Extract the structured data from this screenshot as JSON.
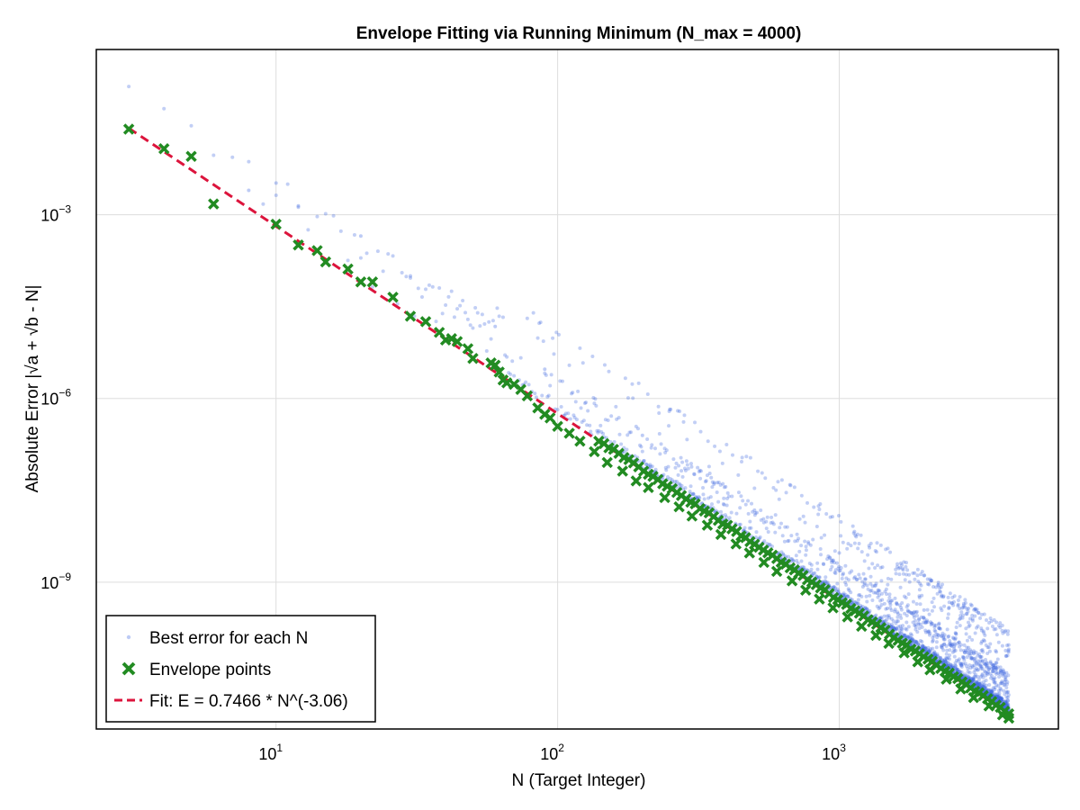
{
  "chart_data": {
    "type": "scatter",
    "title": "Envelope Fitting via Running Minimum (N_max = 4000)",
    "xlabel": "N (Target Integer)",
    "ylabel": "Absolute Error |√a + √b - N|",
    "x_scale": "log",
    "y_scale": "log",
    "xlim": [
      2.3,
      6000
    ],
    "ylim": [
      4e-12,
      0.5
    ],
    "grid": true,
    "legend_position": "bottom-left",
    "x_ticks": [
      {
        "base": "10",
        "exp": "1",
        "value": 10
      },
      {
        "base": "10",
        "exp": "2",
        "value": 100
      },
      {
        "base": "10",
        "exp": "3",
        "value": 1000
      }
    ],
    "y_ticks": [
      {
        "base": "10",
        "exp": "−3",
        "value": 0.001
      },
      {
        "base": "10",
        "exp": "−6",
        "value": 1e-06
      },
      {
        "base": "10",
        "exp": "−9",
        "value": 1e-09
      }
    ],
    "series": [
      {
        "name": "Best error for each N",
        "kind": "scatter",
        "color": "#4169E1",
        "x_range": [
          3,
          4000
        ],
        "description_lower_bound": "≈ Fit line",
        "sample_points": [
          [
            8,
            0.0025
          ],
          [
            10,
            0.0033
          ],
          [
            12,
            0.0014
          ],
          [
            20,
            0.00045
          ],
          [
            30,
            0.0001
          ],
          [
            60,
            1.5e-05
          ],
          [
            90,
            3e-06
          ],
          [
            200,
            2.5e-07
          ],
          [
            500,
            1.5e-08
          ],
          [
            1000,
            3e-09
          ],
          [
            2000,
            3.5e-10
          ],
          [
            4000,
            8e-11
          ]
        ]
      },
      {
        "name": "Envelope points",
        "kind": "scatter",
        "marker": "x",
        "color": "#228B22",
        "x": [
          3,
          4,
          5,
          6,
          10,
          12,
          14,
          15,
          18,
          20,
          22,
          26,
          30,
          34,
          38,
          40,
          42,
          44,
          48,
          50,
          58,
          60,
          62,
          64,
          66,
          70,
          74,
          78,
          85,
          90,
          94,
          100,
          110,
          120,
          135,
          150,
          170,
          190,
          210,
          240,
          270,
          300,
          340,
          380,
          430,
          480,
          540,
          600,
          680,
          760,
          850,
          950,
          1070,
          1200,
          1350,
          1500,
          1700,
          1900,
          2100,
          2400,
          2700,
          3000,
          3400,
          3800,
          4000
        ],
        "y": [
          0.025,
          0.012,
          0.009,
          0.0015,
          0.0007,
          0.00032,
          0.00026,
          0.00017,
          0.00013,
          8e-05,
          8e-05,
          4.5e-05,
          2.2e-05,
          1.8e-05,
          1.2e-05,
          9e-06,
          9.5e-06,
          8.5e-06,
          6.5e-06,
          4.5e-06,
          3.8e-06,
          3.5e-06,
          2.7e-06,
          2e-06,
          1.8e-06,
          1.7e-06,
          1.4e-06,
          1.1e-06,
          7e-07,
          5.5e-07,
          4.8e-07,
          3.5e-07,
          2.7e-07,
          2e-07,
          1.35e-07,
          9e-08,
          6.5e-08,
          4.5e-08,
          3.5e-08,
          2.4e-08,
          1.7e-08,
          1.2e-08,
          8.5e-09,
          6e-09,
          4.2e-09,
          3e-09,
          2.1e-09,
          1.5e-09,
          1.05e-09,
          7.4e-10,
          5.3e-10,
          3.8e-10,
          2.7e-10,
          1.9e-10,
          1.35e-10,
          1e-10,
          7e-11,
          5e-11,
          3.7e-11,
          2.6e-11,
          1.8e-11,
          1.3e-11,
          9.5e-12,
          6.8e-12,
          6e-12
        ]
      },
      {
        "name": "Fit: E = 0.7466 * N^(-3.06)",
        "kind": "line",
        "style": "dashed",
        "color": "#DC143C",
        "coefficient": 0.7466,
        "exponent": -3.06,
        "x_range": [
          3,
          4000
        ]
      }
    ]
  },
  "colors": {
    "frame": "#000000",
    "grid": "#dddddd",
    "background": "#ffffff"
  }
}
